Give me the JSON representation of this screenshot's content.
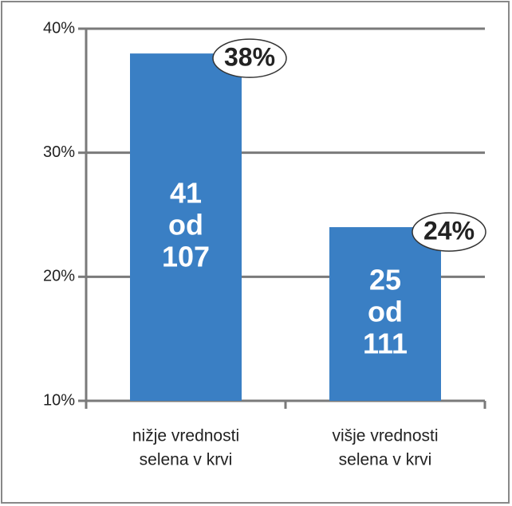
{
  "chart_data": {
    "type": "bar",
    "categories": [
      [
        "nižje vrednosti",
        "selena v krvi"
      ],
      [
        "višje vrednosti",
        "selena v krvi"
      ]
    ],
    "values": [
      38,
      24
    ],
    "value_labels": [
      "38%",
      "24%"
    ],
    "inner_labels": [
      [
        "41",
        "od",
        "107"
      ],
      [
        "25",
        "od",
        "111"
      ]
    ],
    "color": "#3a7fc4",
    "ylim": [
      10,
      40
    ],
    "yticks": [
      {
        "value": 10,
        "label": "10%"
      },
      {
        "value": 20,
        "label": "20%"
      },
      {
        "value": 30,
        "label": "30%"
      },
      {
        "value": 40,
        "label": "40%"
      }
    ],
    "grid": true
  }
}
